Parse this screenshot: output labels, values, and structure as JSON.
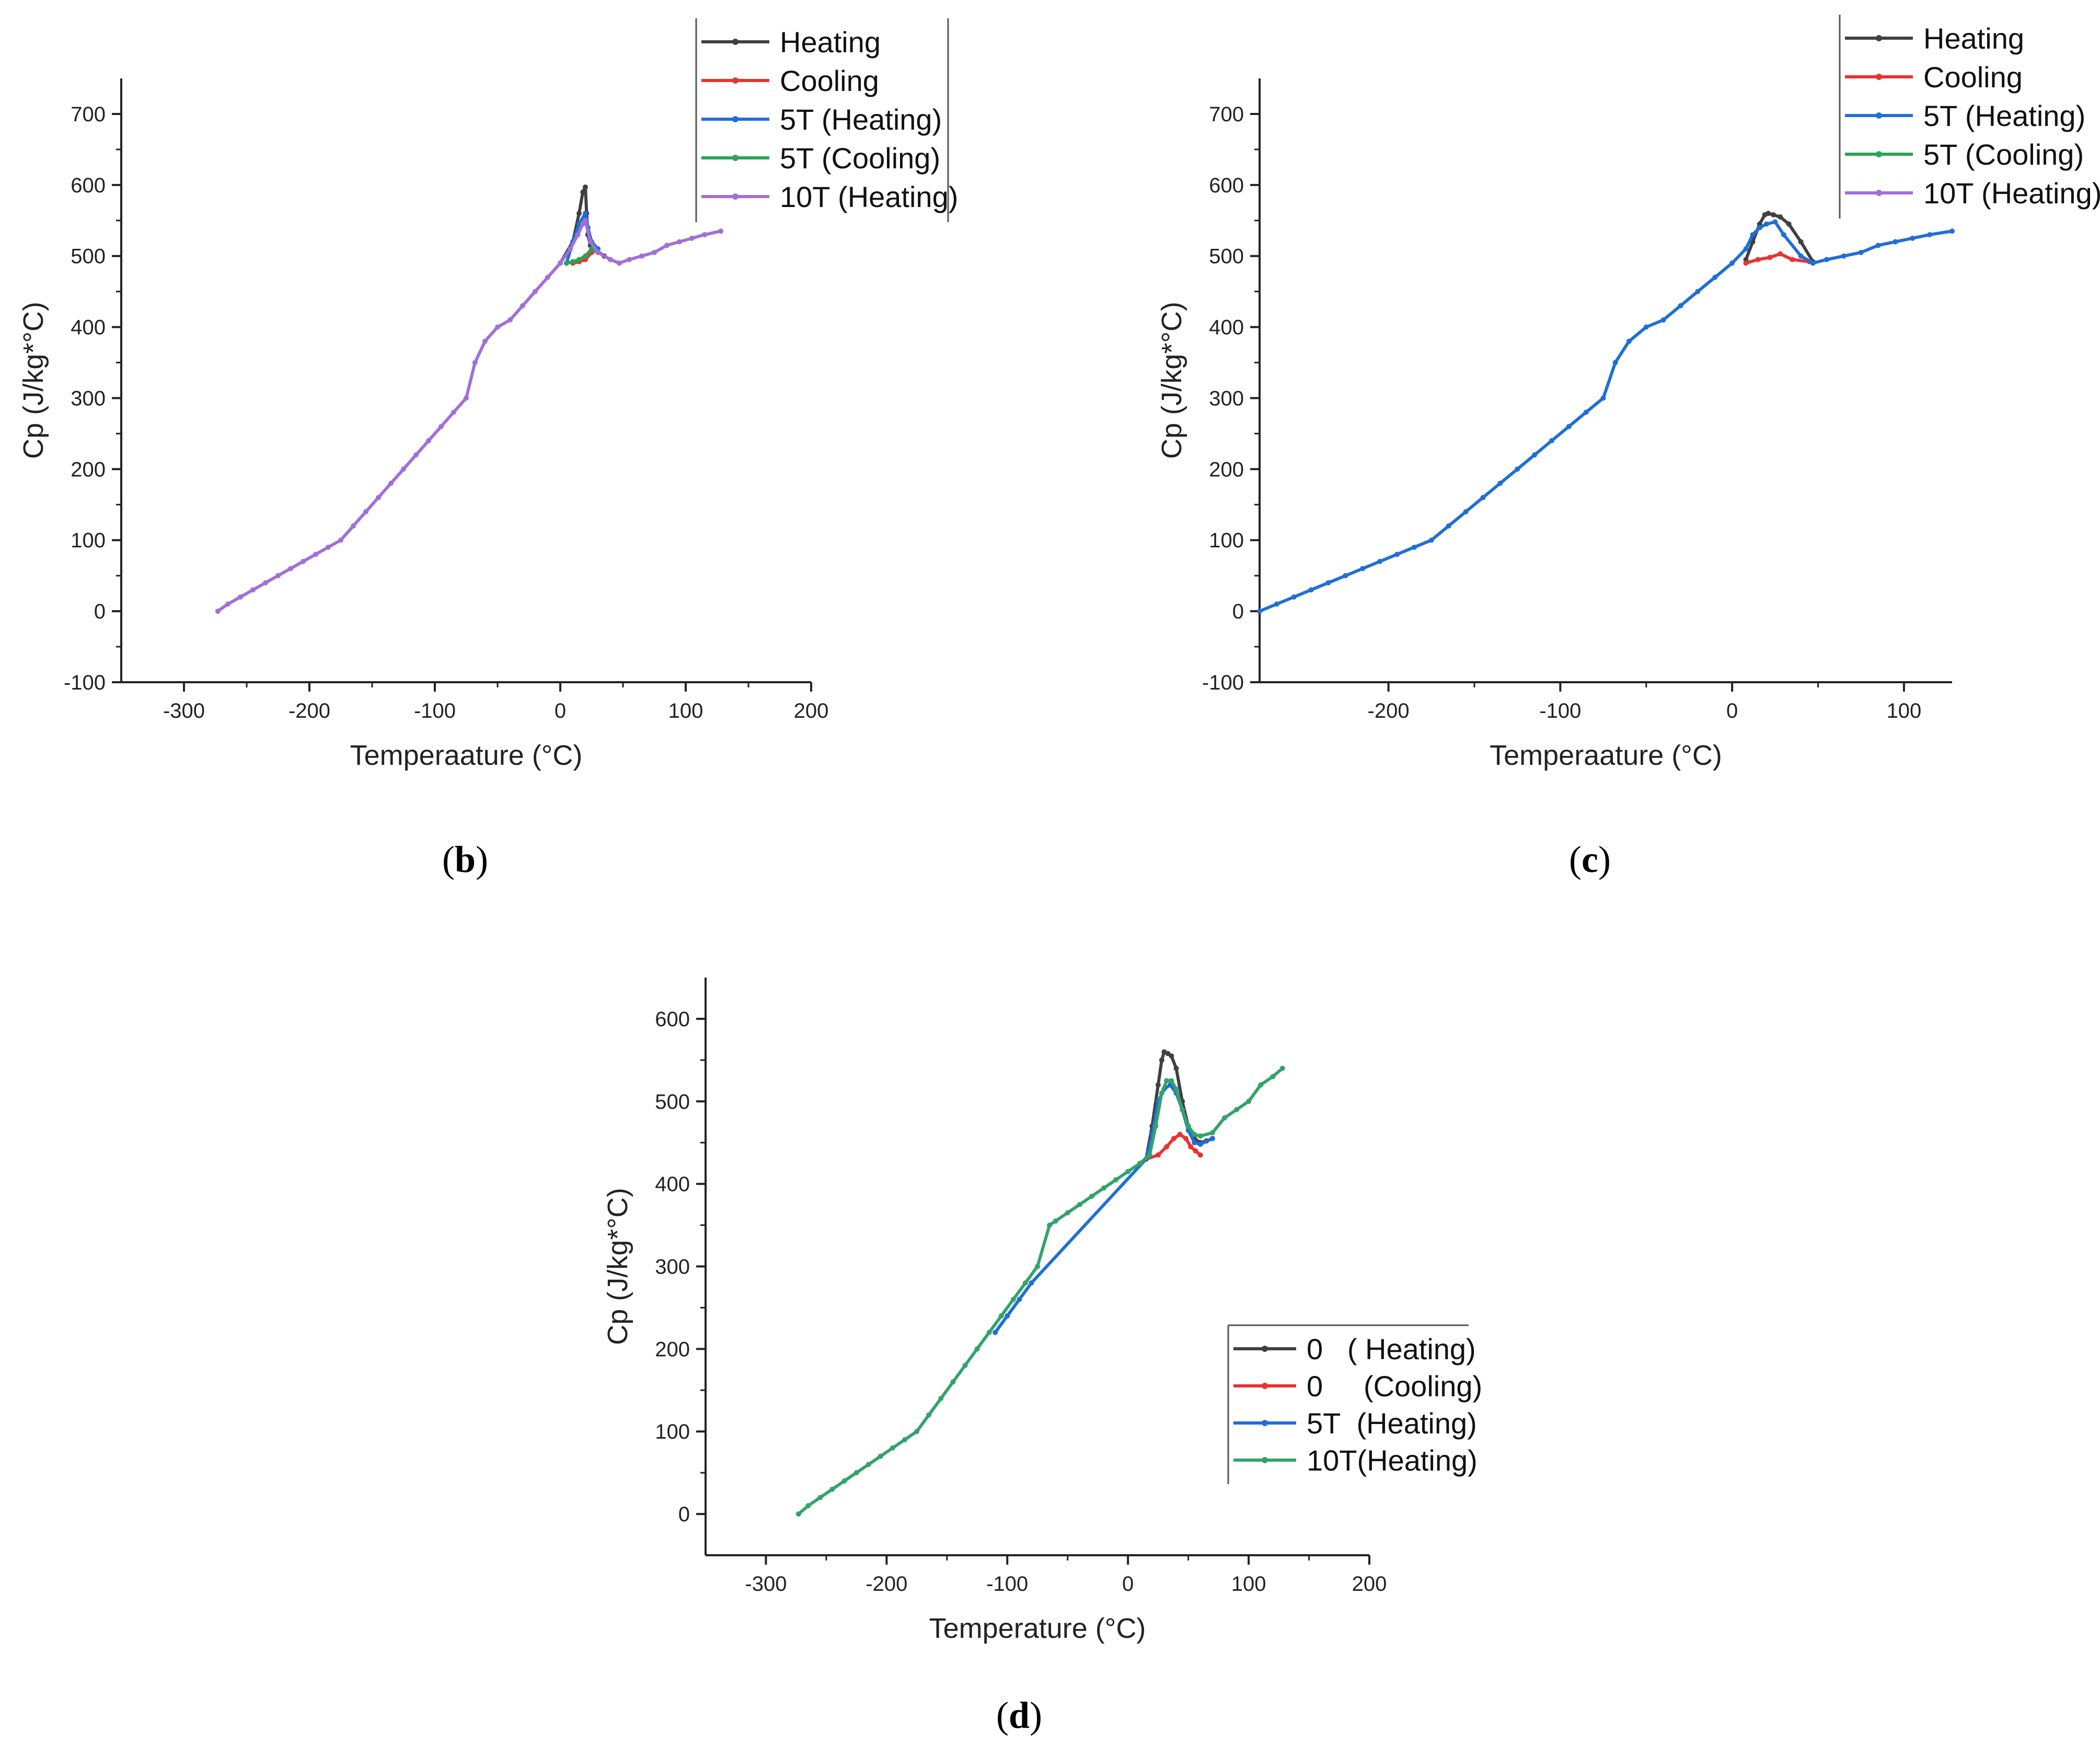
{
  "colors": {
    "heating": "#404040",
    "cooling": "#e8332f",
    "t5_heating": "#1f6fd6",
    "t5_cooling": "#27a456",
    "t10_heating": "#a070d8",
    "t10_heating_d": "#33a36a",
    "axis": "#222222"
  },
  "chart_data": [
    {
      "id": "b",
      "type": "line",
      "panel_label": {
        "open": "(",
        "letter": "b",
        "close": ")"
      },
      "xlabel": "Temperaature (°C)",
      "ylabel": "Cp (J/kg*°C)",
      "xlim": [
        -350,
        200
      ],
      "ylim": [
        -100,
        750
      ],
      "xticks": [
        -300,
        -200,
        -100,
        0,
        100,
        200
      ],
      "yticks": [
        -100,
        0,
        100,
        200,
        300,
        400,
        500,
        600,
        700
      ],
      "legend_position": "top-right",
      "series": [
        {
          "name": "Heating",
          "color_key": "heating",
          "x": [
            0,
            10,
            15,
            18,
            20,
            21,
            22,
            24,
            27,
            35
          ],
          "y": [
            490,
            520,
            560,
            590,
            597,
            560,
            530,
            515,
            510,
            500
          ]
        },
        {
          "name": "Cooling",
          "color_key": "cooling",
          "x": [
            10,
            15,
            20,
            25,
            30
          ],
          "y": [
            490,
            492,
            495,
            505,
            510
          ]
        },
        {
          "name": "5T (Heating)",
          "color_key": "t5_heating",
          "x": [
            5,
            10,
            15,
            20,
            22,
            25,
            30
          ],
          "y": [
            490,
            520,
            545,
            560,
            540,
            520,
            510
          ]
        },
        {
          "name": "5T (Cooling)",
          "color_key": "t5_cooling",
          "x": [
            5,
            10,
            15,
            20,
            25,
            30
          ],
          "y": [
            490,
            492,
            495,
            500,
            510,
            505
          ]
        },
        {
          "name": "10T (Heating)",
          "color_key": "t10_heating",
          "x": [
            -273,
            -265,
            -255,
            -245,
            -235,
            -225,
            -215,
            -205,
            -195,
            -185,
            -175,
            -165,
            -155,
            -145,
            -135,
            -125,
            -115,
            -105,
            -95,
            -85,
            -75,
            -68,
            -60,
            -50,
            -40,
            -30,
            -20,
            -10,
            0,
            8,
            14,
            18,
            20,
            24,
            30,
            40,
            47,
            55,
            65,
            75,
            85,
            95,
            105,
            115,
            128
          ],
          "y": [
            0,
            10,
            20,
            30,
            40,
            50,
            60,
            70,
            80,
            90,
            100,
            120,
            140,
            160,
            180,
            200,
            220,
            240,
            260,
            280,
            300,
            350,
            380,
            400,
            410,
            430,
            450,
            470,
            490,
            510,
            530,
            545,
            550,
            520,
            505,
            495,
            490,
            495,
            500,
            505,
            515,
            520,
            525,
            530,
            535
          ]
        }
      ]
    },
    {
      "id": "c",
      "type": "line",
      "panel_label": {
        "open": "(",
        "letter": "c",
        "close": ")"
      },
      "xlabel": "Temperaature (°C)",
      "ylabel": "Cp (J/kg*°C)",
      "xlim": [
        -275,
        128
      ],
      "ylim": [
        -100,
        750
      ],
      "xticks": [
        -200,
        -100,
        0,
        100
      ],
      "yticks": [
        -100,
        0,
        100,
        200,
        300,
        400,
        500,
        600,
        700
      ],
      "legend_position": "top-right",
      "series": [
        {
          "name": "Heating",
          "color_key": "heating",
          "x": [
            8,
            12,
            16,
            19,
            21,
            24,
            28,
            33,
            40,
            47
          ],
          "y": [
            495,
            520,
            545,
            558,
            560,
            558,
            555,
            545,
            520,
            492
          ]
        },
        {
          "name": "Cooling",
          "color_key": "cooling",
          "x": [
            8,
            15,
            22,
            28,
            35,
            45
          ],
          "y": [
            490,
            495,
            498,
            503,
            495,
            492
          ]
        },
        {
          "name": "5T (Heating)",
          "color_key": "t5_heating",
          "x": [
            -275,
            -265,
            -255,
            -245,
            -235,
            -225,
            -215,
            -205,
            -195,
            -185,
            -175,
            -165,
            -155,
            -145,
            -135,
            -125,
            -115,
            -105,
            -95,
            -85,
            -75,
            -68,
            -60,
            -50,
            -40,
            -30,
            -20,
            -10,
            0,
            8,
            12,
            16,
            20,
            25,
            30,
            40,
            47,
            55,
            65,
            75,
            85,
            95,
            105,
            115,
            128
          ],
          "y": [
            0,
            10,
            20,
            30,
            40,
            50,
            60,
            70,
            80,
            90,
            100,
            120,
            140,
            160,
            180,
            200,
            220,
            240,
            260,
            280,
            300,
            350,
            380,
            400,
            410,
            430,
            450,
            470,
            490,
            510,
            530,
            540,
            545,
            548,
            530,
            500,
            490,
            495,
            500,
            505,
            515,
            520,
            525,
            530,
            535
          ]
        },
        {
          "name": "5T (Cooling)",
          "color_key": "t5_cooling",
          "x": [],
          "y": []
        },
        {
          "name": "10T (Heating)",
          "color_key": "t10_heating",
          "x": [],
          "y": []
        }
      ]
    },
    {
      "id": "d",
      "type": "line",
      "panel_label": {
        "open": "(",
        "letter": "d",
        "close": ")"
      },
      "xlabel": "Temperature (°C)",
      "ylabel": "Cp (J/kg*°C)",
      "xlim": [
        -350,
        200
      ],
      "ylim": [
        -50,
        650
      ],
      "xticks": [
        -300,
        -200,
        -100,
        0,
        100,
        200
      ],
      "yticks": [
        0,
        100,
        200,
        300,
        400,
        500,
        600
      ],
      "legend_position": "bottom-right",
      "series": [
        {
          "name": "0   ( Heating)",
          "color_key": "heating",
          "x": [
            15,
            20,
            25,
            28,
            30,
            33,
            36,
            40,
            45,
            50,
            55,
            60,
            65,
            70
          ],
          "y": [
            430,
            470,
            520,
            550,
            560,
            558,
            555,
            540,
            500,
            470,
            455,
            450,
            452,
            455
          ]
        },
        {
          "name": "0     (Cooling)",
          "color_key": "cooling",
          "x": [
            15,
            25,
            32,
            38,
            43,
            48,
            52,
            56,
            60
          ],
          "y": [
            430,
            435,
            445,
            455,
            460,
            455,
            445,
            440,
            435
          ]
        },
        {
          "name": "5T  (Heating)",
          "color_key": "t5_heating",
          "x": [
            -110,
            -100,
            -90,
            -80,
            15,
            20,
            25,
            30,
            35,
            40,
            45,
            50,
            55,
            60,
            70
          ],
          "y": [
            220,
            240,
            260,
            280,
            430,
            460,
            500,
            515,
            520,
            510,
            490,
            465,
            450,
            448,
            455
          ]
        },
        {
          "name": "10T(Heating)",
          "color_key": "t10_heating_d",
          "x": [
            -273,
            -265,
            -255,
            -245,
            -235,
            -225,
            -215,
            -205,
            -195,
            -185,
            -175,
            -165,
            -155,
            -145,
            -135,
            -125,
            -115,
            -105,
            -95,
            -85,
            -75,
            -65,
            -60,
            -50,
            -40,
            -30,
            -20,
            -10,
            0,
            10,
            18,
            23,
            28,
            32,
            36,
            40,
            45,
            50,
            55,
            60,
            70,
            80,
            90,
            100,
            110,
            120,
            128
          ],
          "y": [
            0,
            10,
            20,
            30,
            40,
            50,
            60,
            70,
            80,
            90,
            100,
            120,
            140,
            160,
            180,
            200,
            220,
            240,
            260,
            280,
            300,
            350,
            355,
            365,
            375,
            385,
            395,
            405,
            415,
            425,
            435,
            470,
            510,
            525,
            525,
            515,
            490,
            470,
            460,
            458,
            462,
            480,
            490,
            500,
            520,
            530,
            540
          ]
        }
      ]
    }
  ]
}
